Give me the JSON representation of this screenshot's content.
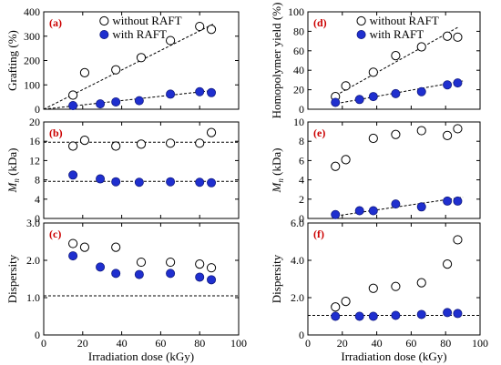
{
  "chart_data": [
    {
      "type": "scatter",
      "panel_label": "(a)",
      "ylabel": "Grafting (%)",
      "xlabel": "",
      "xlim": [
        0,
        100
      ],
      "ylim": [
        0,
        400
      ],
      "x_ticks": [
        0,
        20,
        40,
        60,
        80,
        100
      ],
      "x_tick_labels": [
        "",
        "",
        "",
        "",
        "",
        ""
      ],
      "y_ticks": [
        0,
        100,
        200,
        300,
        400
      ],
      "y_tick_labels": [
        "0",
        "100",
        "200",
        "300",
        "400"
      ],
      "legend_position": "top-right",
      "series": [
        {
          "name": "without RAFT",
          "marker": "open-circle",
          "x": [
            15,
            21,
            37,
            50,
            65,
            80,
            86
          ],
          "y": [
            58,
            150,
            162,
            212,
            282,
            340,
            328
          ],
          "fit": [
            [
              0,
              0
            ],
            [
              87,
              350
            ]
          ]
        },
        {
          "name": "with RAFT",
          "marker": "filled-circle",
          "x": [
            15,
            29,
            37,
            49,
            65,
            80,
            86
          ],
          "y": [
            15,
            22,
            30,
            35,
            62,
            72,
            68
          ],
          "fit": [
            [
              0,
              0
            ],
            [
              88,
              78
            ]
          ]
        }
      ]
    },
    {
      "type": "scatter",
      "panel_label": "(b)",
      "ylabel": "M_n (kDa)",
      "xlabel": "",
      "xlim": [
        0,
        100
      ],
      "ylim": [
        0,
        20
      ],
      "x_ticks": [
        0,
        20,
        40,
        60,
        80,
        100
      ],
      "x_tick_labels": [
        "",
        "",
        "",
        "",
        "",
        ""
      ],
      "y_ticks": [
        0,
        4,
        8,
        12,
        16,
        20
      ],
      "y_tick_labels": [
        "0",
        "4",
        "8",
        "12",
        "16",
        "20"
      ],
      "series": [
        {
          "name": "without RAFT",
          "marker": "open-circle",
          "x": [
            15,
            21,
            37,
            50,
            65,
            80,
            86
          ],
          "y": [
            15.0,
            16.2,
            15.0,
            15.4,
            15.6,
            15.6,
            17.8
          ],
          "fit": [
            [
              0,
              15.8
            ],
            [
              100,
              15.8
            ]
          ]
        },
        {
          "name": "with RAFT",
          "marker": "filled-circle",
          "x": [
            15,
            29,
            37,
            49,
            65,
            80,
            86
          ],
          "y": [
            9.0,
            8.2,
            7.6,
            7.5,
            7.6,
            7.5,
            7.4
          ],
          "fit": [
            [
              0,
              7.7
            ],
            [
              100,
              7.7
            ]
          ]
        }
      ]
    },
    {
      "type": "scatter",
      "panel_label": "(c)",
      "ylabel": "Dispersity",
      "xlabel": "Irradiation dose (kGy)",
      "xlim": [
        0,
        100
      ],
      "ylim": [
        0,
        3
      ],
      "x_ticks": [
        0,
        20,
        40,
        60,
        80,
        100
      ],
      "x_tick_labels": [
        "0",
        "20",
        "40",
        "60",
        "80",
        "100"
      ],
      "y_ticks": [
        0,
        1,
        2,
        3
      ],
      "y_tick_labels": [
        "0",
        "1.0",
        "2.0",
        "3.0"
      ],
      "series": [
        {
          "name": "without RAFT",
          "marker": "open-circle",
          "x": [
            15,
            21,
            37,
            50,
            65,
            80,
            86
          ],
          "y": [
            2.45,
            2.35,
            2.35,
            1.95,
            1.95,
            1.9,
            1.8
          ],
          "fit": null
        },
        {
          "name": "with RAFT",
          "marker": "filled-circle",
          "x": [
            15,
            29,
            37,
            49,
            65,
            80,
            86
          ],
          "y": [
            2.12,
            1.82,
            1.65,
            1.62,
            1.65,
            1.55,
            1.48
          ],
          "fit": null
        }
      ],
      "reference_line": 1.05
    },
    {
      "type": "scatter",
      "panel_label": "(d)",
      "ylabel": "Homopolymer yield (%)",
      "xlabel": "",
      "xlim": [
        0,
        100
      ],
      "ylim": [
        0,
        100
      ],
      "x_ticks": [
        0,
        20,
        40,
        60,
        80,
        100
      ],
      "x_tick_labels": [
        "",
        "",
        "",
        "",
        "",
        ""
      ],
      "y_ticks": [
        0,
        20,
        40,
        60,
        80,
        100
      ],
      "y_tick_labels": [
        "0",
        "20",
        "40",
        "60",
        "80",
        "100"
      ],
      "legend_position": "top-right",
      "series": [
        {
          "name": "without RAFT",
          "marker": "open-circle",
          "x": [
            16,
            22,
            38,
            51,
            66,
            81,
            87
          ],
          "y": [
            13,
            24,
            38,
            55,
            64,
            75,
            74
          ],
          "fit": [
            [
              14,
              12
            ],
            [
              87,
              84
            ]
          ]
        },
        {
          "name": "with RAFT",
          "marker": "filled-circle",
          "x": [
            16,
            30,
            38,
            51,
            66,
            81,
            87
          ],
          "y": [
            7,
            10,
            13,
            16,
            18,
            25,
            27
          ],
          "fit": [
            [
              14,
              5
            ],
            [
              90,
              29
            ]
          ]
        }
      ]
    },
    {
      "type": "scatter",
      "panel_label": "(e)",
      "ylabel": "M_n (kDa)",
      "xlabel": "",
      "xlim": [
        0,
        100
      ],
      "ylim": [
        0,
        10
      ],
      "x_ticks": [
        0,
        20,
        40,
        60,
        80,
        100
      ],
      "x_tick_labels": [
        "",
        "",
        "",
        "",
        "",
        ""
      ],
      "y_ticks": [
        0,
        2,
        4,
        6,
        8,
        10
      ],
      "y_tick_labels": [
        "0",
        "2",
        "4",
        "6",
        "8",
        "10"
      ],
      "series": [
        {
          "name": "without RAFT",
          "marker": "open-circle",
          "x": [
            16,
            22,
            38,
            51,
            66,
            81,
            87
          ],
          "y": [
            5.4,
            6.1,
            8.3,
            8.7,
            9.1,
            8.6,
            9.3
          ],
          "fit": null
        },
        {
          "name": "with RAFT",
          "marker": "filled-circle",
          "x": [
            16,
            30,
            38,
            51,
            66,
            81,
            87
          ],
          "y": [
            0.4,
            0.8,
            0.8,
            1.5,
            1.2,
            1.8,
            1.8
          ],
          "fit": [
            [
              14,
              0.2
            ],
            [
              90,
              2.2
            ]
          ]
        }
      ]
    },
    {
      "type": "scatter",
      "panel_label": "(f)",
      "ylabel": "Dispersity",
      "xlabel": "Irradiation dose (kGy)",
      "xlim": [
        0,
        100
      ],
      "ylim": [
        0,
        6
      ],
      "x_ticks": [
        0,
        20,
        40,
        60,
        80,
        100
      ],
      "x_tick_labels": [
        "0",
        "20",
        "40",
        "60",
        "80",
        "100"
      ],
      "y_ticks": [
        0,
        2,
        4,
        6
      ],
      "y_tick_labels": [
        "0",
        "2.0",
        "4.0",
        "6.0"
      ],
      "series": [
        {
          "name": "without RAFT",
          "marker": "open-circle",
          "x": [
            16,
            22,
            38,
            51,
            66,
            81,
            87
          ],
          "y": [
            1.5,
            1.8,
            2.5,
            2.6,
            2.8,
            3.8,
            5.1
          ],
          "fit": null
        },
        {
          "name": "with RAFT",
          "marker": "filled-circle",
          "x": [
            16,
            30,
            38,
            51,
            66,
            81,
            87
          ],
          "y": [
            1.0,
            1.0,
            1.0,
            1.05,
            1.1,
            1.2,
            1.15
          ],
          "fit": null
        }
      ],
      "reference_line": 1.05
    }
  ],
  "colors": {
    "filled_marker": "#1f2fcf",
    "panel_label": "#cc0000",
    "axis": "#000000"
  }
}
